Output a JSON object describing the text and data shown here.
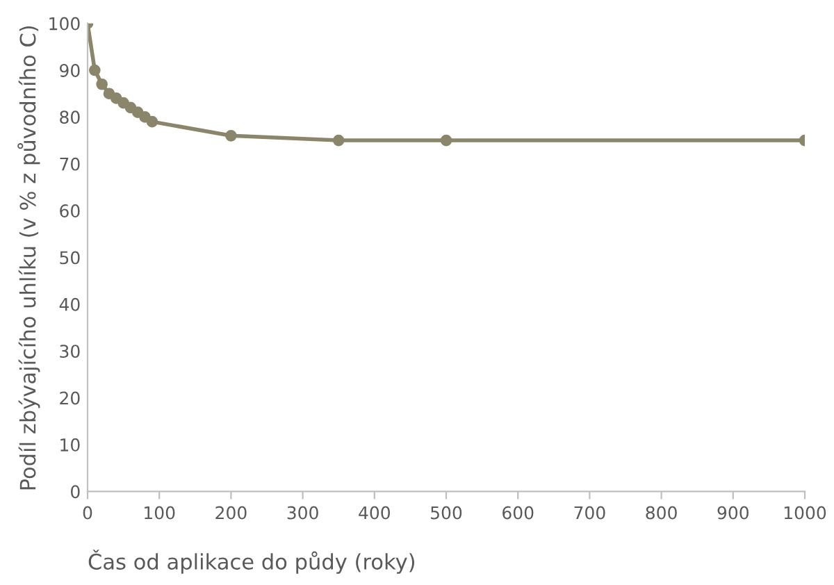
{
  "chart_data": {
    "type": "line",
    "xlabel": "Čas od aplikace do půdy (roky)",
    "ylabel": "Podíl zbývajícího uhlíku (v % z původního C)",
    "x": [
      0,
      10,
      20,
      30,
      40,
      50,
      60,
      70,
      80,
      90,
      200,
      350,
      500,
      1000
    ],
    "series": [
      {
        "color": "#8b856b",
        "values": [
          100,
          90,
          87,
          85,
          84,
          83,
          82,
          81,
          80,
          79,
          76,
          75,
          75,
          75
        ]
      }
    ],
    "xlim": [
      0,
      1000
    ],
    "xticks": [
      0,
      100,
      200,
      300,
      400,
      500,
      600,
      700,
      800,
      900,
      1000
    ],
    "ylim": [
      0,
      100
    ],
    "yticks": [
      0,
      10,
      20,
      30,
      40,
      50,
      60,
      70,
      80,
      90,
      100
    ],
    "marker": "circle",
    "line_style": "solid",
    "grid": false,
    "legend": false
  }
}
